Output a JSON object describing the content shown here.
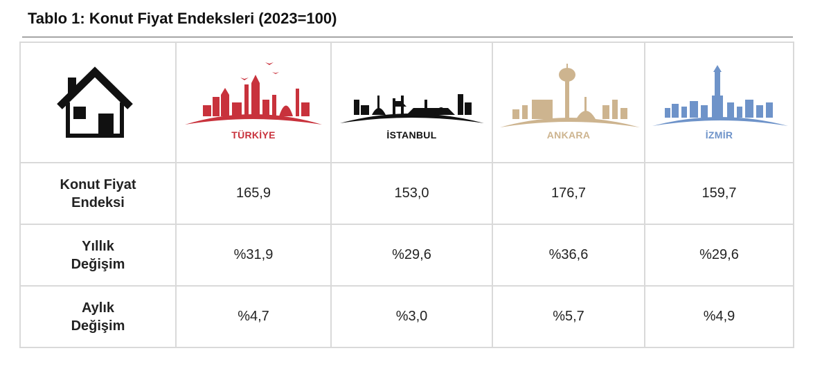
{
  "title": "Tablo 1: Konut Fiyat Endeksleri (2023=100)",
  "header": {
    "icon": "house-icon",
    "cities": [
      {
        "name": "TÜRKİYE",
        "color": "#c8323c"
      },
      {
        "name": "İSTANBUL",
        "color": "#111111"
      },
      {
        "name": "ANKARA",
        "color": "#cdb48f"
      },
      {
        "name": "İZMİR",
        "color": "#6e93c9"
      }
    ]
  },
  "rows": [
    {
      "label_line1": "Konut Fiyat",
      "label_line2": "Endeksi",
      "values": [
        "165,9",
        "153,0",
        "176,7",
        "159,7"
      ]
    },
    {
      "label_line1": "Yıllık",
      "label_line2": "Değişim",
      "values": [
        "%31,9",
        "%29,6",
        "%36,6",
        "%29,6"
      ]
    },
    {
      "label_line1": "Aylık",
      "label_line2": "Değişim",
      "values": [
        "%4,7",
        "%3,0",
        "%5,7",
        "%4,9"
      ]
    }
  ]
}
